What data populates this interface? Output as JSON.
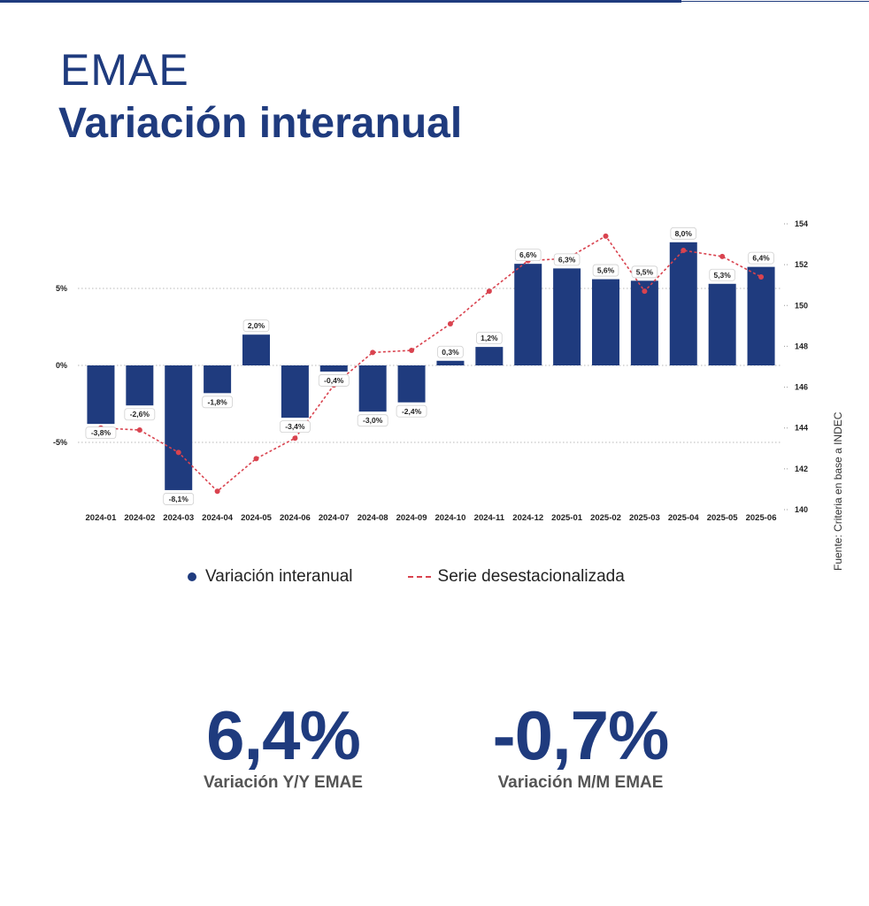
{
  "header": {
    "title_line1": "EMAE",
    "title_line2": "Variación interanual"
  },
  "legend": {
    "bars_label": "Variación interanual",
    "line_label": "Serie desestacionalizada"
  },
  "source": "Fuente: Criteria en base a INDEC",
  "kpis": [
    {
      "value": "6,4%",
      "label": "Variación Y/Y EMAE"
    },
    {
      "value": "-0,7%",
      "label": "Variación M/M EMAE"
    }
  ],
  "colors": {
    "bar": "#1f3b7e",
    "line": "#d9434f",
    "title": "#1f3b7e"
  },
  "chart_data": {
    "type": "bar",
    "categories": [
      "2024-01",
      "2024-02",
      "2024-03",
      "2024-04",
      "2024-05",
      "2024-06",
      "2024-07",
      "2024-08",
      "2024-09",
      "2024-10",
      "2024-11",
      "2024-12",
      "2025-01",
      "2025-02",
      "2025-03",
      "2025-04",
      "2025-05",
      "2025-06"
    ],
    "series": [
      {
        "name": "Variación interanual",
        "type": "bar",
        "axis": "left",
        "values": [
          -3.8,
          -2.6,
          -8.1,
          -1.8,
          2.0,
          -3.4,
          -0.4,
          -3.0,
          -2.4,
          0.3,
          1.2,
          6.6,
          6.3,
          5.6,
          5.5,
          8.0,
          5.3,
          6.4
        ],
        "labels": [
          "-3,8%",
          "-2,6%",
          "-8,1%",
          "-1,8%",
          "2,0%",
          "-3,4%",
          "-0,4%",
          "-3,0%",
          "-2,4%",
          "0,3%",
          "1,2%",
          "6,6%",
          "6,3%",
          "5,6%",
          "5,5%",
          "8,0%",
          "5,3%",
          "6,4%"
        ]
      },
      {
        "name": "Serie desestacionalizada",
        "type": "line",
        "axis": "right",
        "values": [
          144.0,
          143.9,
          142.8,
          140.9,
          142.5,
          143.5,
          146.1,
          147.7,
          147.8,
          149.1,
          150.7,
          152.2,
          152.3,
          153.4,
          150.7,
          152.7,
          152.4,
          151.4
        ]
      }
    ],
    "y_left": {
      "range": [
        -9.5,
        9.5
      ],
      "ticks": [
        -5,
        0,
        5
      ],
      "tick_labels": [
        "-5%",
        "0%",
        "5%"
      ]
    },
    "y_right": {
      "range": [
        140,
        154
      ],
      "ticks": [
        140,
        142,
        144,
        146,
        148,
        150,
        152,
        154
      ],
      "tick_labels": [
        "140",
        "142",
        "144",
        "146",
        "148",
        "150",
        "152",
        "154"
      ]
    },
    "grid": true,
    "legend_position": "bottom"
  }
}
